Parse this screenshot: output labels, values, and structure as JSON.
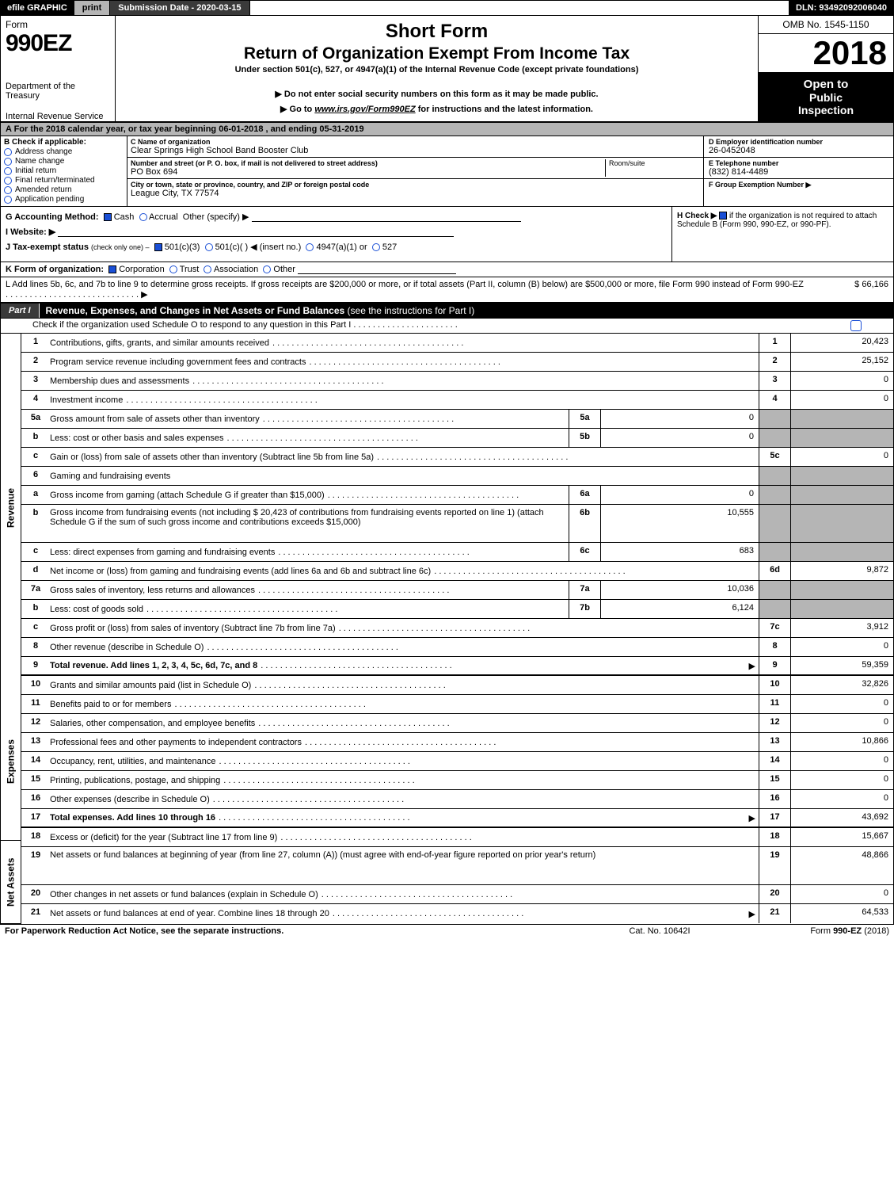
{
  "topbar": {
    "efile": "efile GRAPHIC",
    "print": "print",
    "subdate_label": "Submission Date - 2020-03-15",
    "dln": "DLN: 93492092006040"
  },
  "header": {
    "form_word": "Form",
    "form_no": "990EZ",
    "title1": "Short Form",
    "title2": "Return of Organization Exempt From Income Tax",
    "title3": "Under section 501(c), 527, or 4947(a)(1) of the Internal Revenue Code (except private foundations)",
    "title4": "▶ Do not enter social security numbers on this form as it may be made public.",
    "title5_pre": "▶ Go to ",
    "title5_link": "www.irs.gov/Form990EZ",
    "title5_post": " for instructions and the latest information.",
    "dept1": "Department of the Treasury",
    "dept2": "Internal Revenue Service",
    "omb": "OMB No. 1545-1150",
    "year": "2018",
    "open1": "Open to",
    "open2": "Public",
    "open3": "Inspection"
  },
  "period": {
    "text_pre": "A  For the 2018 calendar year, or tax year beginning ",
    "begin": "06-01-2018",
    "mid": " , and ending ",
    "end": "05-31-2019"
  },
  "boxB": {
    "hdr": "B  Check if applicable:",
    "items": [
      "Address change",
      "Name change",
      "Initial return",
      "Final return/terminated",
      "Amended return",
      "Application pending"
    ]
  },
  "boxC": {
    "c_label": "C Name of organization",
    "c_val": "Clear Springs High School Band Booster Club",
    "addr_label": "Number and street (or P. O. box, if mail is not delivered to street address)",
    "addr_val": "PO Box 694",
    "room_label": "Room/suite",
    "city_label": "City or town, state or province, country, and ZIP or foreign postal code",
    "city_val": "League City, TX  77574"
  },
  "boxD": {
    "label": "D Employer identification number",
    "val": "26-0452048"
  },
  "boxE": {
    "label": "E Telephone number",
    "val": "(832) 814-4489"
  },
  "boxF": {
    "label": "F Group Exemption Number  ▶",
    "val": ""
  },
  "lineG": {
    "label": "G Accounting Method:",
    "opts": [
      "Cash",
      "Accrual"
    ],
    "other": "Other (specify) ▶"
  },
  "lineH": {
    "label": "H  Check ▶",
    "text": " if the organization is not required to attach Schedule B (Form 990, 990-EZ, or 990-PF)."
  },
  "lineI": {
    "label": "I Website: ▶"
  },
  "lineJ": {
    "label": "J Tax-exempt status",
    "small": "(check only one) –",
    "opts": [
      "501(c)(3)",
      "501(c)(  ) ◀ (insert no.)",
      "4947(a)(1) or",
      "527"
    ]
  },
  "lineK": {
    "label": "K Form of organization:",
    "opts": [
      "Corporation",
      "Trust",
      "Association",
      "Other"
    ]
  },
  "lineL": {
    "text": "L Add lines 5b, 6c, and 7b to line 9 to determine gross receipts. If gross receipts are $200,000 or more, or if total assets (Part II, column (B) below) are $500,000 or more, file Form 990 instead of Form 990-EZ",
    "arrow": "▶",
    "val": "$ 66,166"
  },
  "part1": {
    "tab": "Part I",
    "title": "Revenue, Expenses, and Changes in Net Assets or Fund Balances",
    "title_tail": "(see the instructions for Part I)",
    "sub": "Check if the organization used Schedule O to respond to any question in this Part I"
  },
  "sidebar": {
    "rev": "Revenue",
    "exp": "Expenses",
    "net": "Net Assets"
  },
  "rows": [
    {
      "no": "1",
      "desc": "Contributions, gifts, grants, and similar amounts received",
      "num": "1",
      "val": "20,423"
    },
    {
      "no": "2",
      "desc": "Program service revenue including government fees and contracts",
      "num": "2",
      "val": "25,152"
    },
    {
      "no": "3",
      "desc": "Membership dues and assessments",
      "num": "3",
      "val": "0"
    },
    {
      "no": "4",
      "desc": "Investment income",
      "num": "4",
      "val": "0"
    },
    {
      "no": "5a",
      "desc": "Gross amount from sale of assets other than inventory",
      "inner_no": "5a",
      "inner_val": "0",
      "grey": true
    },
    {
      "no": "b",
      "desc": "Less: cost or other basis and sales expenses",
      "inner_no": "5b",
      "inner_val": "0",
      "grey": true
    },
    {
      "no": "c",
      "desc": "Gain or (loss) from sale of assets other than inventory (Subtract line 5b from line 5a)",
      "num": "5c",
      "val": "0"
    },
    {
      "no": "6",
      "desc": "Gaming and fundraising events",
      "grey": true,
      "nocells": true
    },
    {
      "no": "a",
      "desc": "Gross income from gaming (attach Schedule G if greater than $15,000)",
      "inner_no": "6a",
      "inner_val": "0",
      "grey": true
    },
    {
      "no": "b",
      "desc": "Gross income from fundraising events (not including $  20,423         of contributions from fundraising events reported on line 1) (attach Schedule G if the sum of such gross income and contributions exceeds $15,000)",
      "inner_no": "6b",
      "inner_val": "10,555",
      "grey": true,
      "multi": true
    },
    {
      "no": "c",
      "desc": "Less: direct expenses from gaming and fundraising events",
      "inner_no": "6c",
      "inner_val": "683",
      "grey": true
    },
    {
      "no": "d",
      "desc": "Net income or (loss) from gaming and fundraising events (add lines 6a and 6b and subtract line 6c)",
      "num": "6d",
      "val": "9,872"
    },
    {
      "no": "7a",
      "desc": "Gross sales of inventory, less returns and allowances",
      "inner_no": "7a",
      "inner_val": "10,036",
      "grey": true
    },
    {
      "no": "b",
      "desc": "Less: cost of goods sold",
      "inner_no": "7b",
      "inner_val": "6,124",
      "grey": true
    },
    {
      "no": "c",
      "desc": "Gross profit or (loss) from sales of inventory (Subtract line 7b from line 7a)",
      "num": "7c",
      "val": "3,912"
    },
    {
      "no": "8",
      "desc": "Other revenue (describe in Schedule O)",
      "num": "8",
      "val": "0"
    },
    {
      "no": "9",
      "desc": "Total revenue. Add lines 1, 2, 3, 4, 5c, 6d, 7c, and 8",
      "num": "9",
      "val": "59,359",
      "bold": true,
      "arrow": true,
      "sec_end": "rev"
    },
    {
      "no": "10",
      "desc": "Grants and similar amounts paid (list in Schedule O)",
      "num": "10",
      "val": "32,826"
    },
    {
      "no": "11",
      "desc": "Benefits paid to or for members",
      "num": "11",
      "val": "0"
    },
    {
      "no": "12",
      "desc": "Salaries, other compensation, and employee benefits",
      "num": "12",
      "val": "0"
    },
    {
      "no": "13",
      "desc": "Professional fees and other payments to independent contractors",
      "num": "13",
      "val": "10,866"
    },
    {
      "no": "14",
      "desc": "Occupancy, rent, utilities, and maintenance",
      "num": "14",
      "val": "0"
    },
    {
      "no": "15",
      "desc": "Printing, publications, postage, and shipping",
      "num": "15",
      "val": "0"
    },
    {
      "no": "16",
      "desc": "Other expenses (describe in Schedule O)",
      "num": "16",
      "val": "0"
    },
    {
      "no": "17",
      "desc": "Total expenses. Add lines 10 through 16",
      "num": "17",
      "val": "43,692",
      "bold": true,
      "arrow": true,
      "sec_end": "exp"
    },
    {
      "no": "18",
      "desc": "Excess or (deficit) for the year (Subtract line 17 from line 9)",
      "num": "18",
      "val": "15,667"
    },
    {
      "no": "19",
      "desc": "Net assets or fund balances at beginning of year (from line 27, column (A)) (must agree with end-of-year figure reported on prior year's return)",
      "num": "19",
      "val": "48,866",
      "multi": true
    },
    {
      "no": "20",
      "desc": "Other changes in net assets or fund balances (explain in Schedule O)",
      "num": "20",
      "val": "0"
    },
    {
      "no": "21",
      "desc": "Net assets or fund balances at end of year. Combine lines 18 through 20",
      "num": "21",
      "val": "64,533",
      "arrow": true
    }
  ],
  "footer": {
    "left": "For Paperwork Reduction Act Notice, see the separate instructions.",
    "mid": "Cat. No. 10642I",
    "right": "Form 990-EZ (2018)"
  },
  "colors": {
    "black": "#000000",
    "grey_bg": "#b5b5b5",
    "darkgrey": "#3a3a3a",
    "blue": "#1a4fd6"
  }
}
